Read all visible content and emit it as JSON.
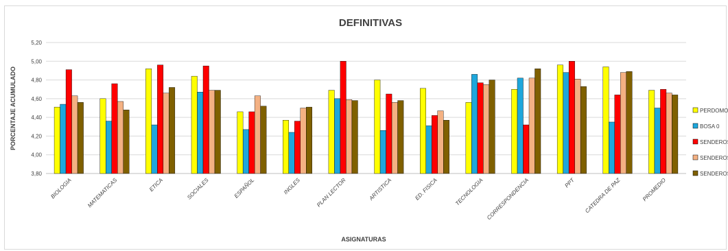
{
  "chart_data": {
    "type": "bar",
    "title": "DEFINITIVAS",
    "xlabel": "ASIGNATURAS",
    "ylabel": "PORCENTAJE ACUMULADO",
    "ylim": [
      3.8,
      5.2
    ],
    "yticks": [
      "3,80",
      "4,00",
      "4,20",
      "4,40",
      "4,60",
      "4,80",
      "5,00",
      "5,20"
    ],
    "grid": true,
    "legend_position": "right",
    "categories": [
      "BIOLOGIA",
      "MATEMATICAS",
      "ETICA",
      "SOCIALES",
      "ESPAÑOL",
      "INGLES",
      "PLAN LECTOR",
      "ARTISTICA",
      "ED. FISICA",
      "TECNOLOGIA",
      "CORRESPONDENCIA",
      "PPT",
      "CATEDRA DE PAZ",
      "PROMEDIO"
    ],
    "series": [
      {
        "name": "PERDOMO C",
        "color": "#ffff00",
        "values": [
          4.51,
          4.6,
          4.92,
          4.84,
          4.46,
          4.37,
          4.69,
          4.8,
          4.71,
          4.56,
          4.7,
          4.96,
          4.94,
          4.69
        ]
      },
      {
        "name": "BOSA 0",
        "color": "#1ea7dc",
        "values": [
          4.54,
          4.36,
          4.32,
          4.67,
          4.27,
          4.24,
          4.6,
          4.26,
          4.31,
          4.86,
          4.82,
          4.88,
          4.35,
          4.5
        ]
      },
      {
        "name": "SENDEROS C",
        "color": "#ff0000",
        "values": [
          4.91,
          4.76,
          4.96,
          4.95,
          4.46,
          4.36,
          5.0,
          4.65,
          4.42,
          4.77,
          4.32,
          5.0,
          4.64,
          4.7
        ]
      },
      {
        "name": "SENDEROS P",
        "color": "#f4b183",
        "values": [
          4.63,
          4.57,
          4.66,
          4.69,
          4.63,
          4.5,
          4.59,
          4.56,
          4.47,
          4.75,
          4.82,
          4.81,
          4.88,
          4.66
        ]
      },
      {
        "name": "SENDEROS J",
        "color": "#7f6000",
        "values": [
          4.56,
          4.48,
          4.72,
          4.69,
          4.52,
          4.51,
          4.58,
          4.58,
          4.37,
          4.8,
          4.92,
          4.73,
          4.89,
          4.64
        ]
      }
    ]
  }
}
